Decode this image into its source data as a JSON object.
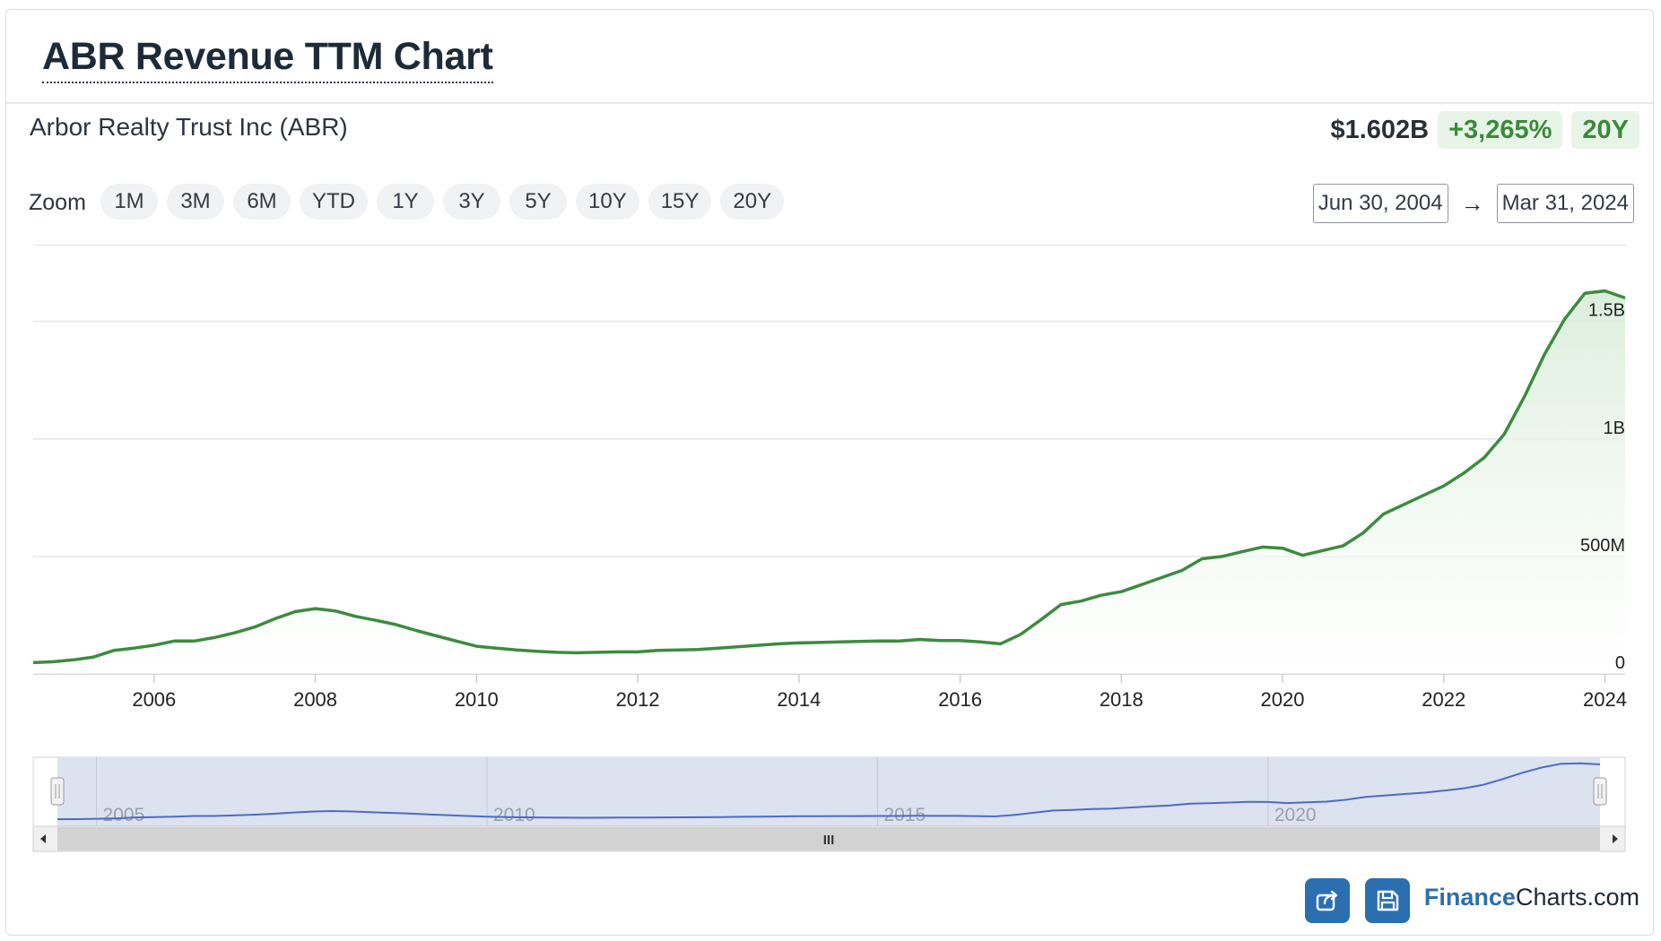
{
  "header": {
    "title": "ABR Revenue TTM Chart"
  },
  "company": {
    "name": "Arbor Realty Trust Inc (ABR)"
  },
  "summary": {
    "price": "$1.602B",
    "change": "+3,265%",
    "period": "20Y"
  },
  "zoom": {
    "label": "Zoom",
    "buttons": [
      "1M",
      "3M",
      "6M",
      "YTD",
      "1Y",
      "3Y",
      "5Y",
      "10Y",
      "15Y",
      "20Y"
    ]
  },
  "date_range": {
    "from": "Jun 30, 2004",
    "to": "Mar 31, 2024",
    "arrow": "→"
  },
  "colors": {
    "line": "#3d8b40",
    "fill": "#e9f4e9",
    "navigator_bg": "#dde2f0",
    "navigator_line": "#4b6cc2",
    "brand": "#2c6fb0"
  },
  "chart_data": {
    "type": "area",
    "title": "ABR Revenue TTM Chart",
    "series": [
      {
        "x": [
          2004.5,
          2004.75,
          2005.0,
          2005.25,
          2005.5,
          2005.75,
          2006.0,
          2006.25,
          2006.5,
          2006.75,
          2007.0,
          2007.25,
          2007.5,
          2007.75,
          2008.0,
          2008.25,
          2008.5,
          2008.75,
          2009.0,
          2009.25,
          2009.5,
          2009.75,
          2010.0,
          2010.25,
          2010.5,
          2010.75,
          2011.0,
          2011.25,
          2011.5,
          2011.75,
          2012.0,
          2012.25,
          2012.5,
          2012.75,
          2013.0,
          2013.25,
          2013.5,
          2013.75,
          2014.0,
          2014.25,
          2014.5,
          2014.75,
          2015.0,
          2015.25,
          2015.5,
          2015.75,
          2016.0,
          2016.25,
          2016.5,
          2016.75,
          2017.0,
          2017.25,
          2017.5,
          2017.75,
          2018.0,
          2018.25,
          2018.5,
          2018.75,
          2019.0,
          2019.25,
          2019.5,
          2019.75,
          2020.0,
          2020.25,
          2020.5,
          2020.75,
          2021.0,
          2021.25,
          2021.5,
          2021.75,
          2022.0,
          2022.25,
          2022.5,
          2022.75,
          2023.0,
          2023.25,
          2023.5,
          2023.75,
          2024.0,
          2024.25
        ],
        "values": [
          48,
          52,
          60,
          72,
          100,
          110,
          122,
          140,
          140,
          155,
          175,
          200,
          235,
          265,
          278,
          268,
          245,
          228,
          210,
          185,
          162,
          140,
          118,
          110,
          102,
          96,
          92,
          90,
          92,
          94,
          94,
          100,
          102,
          104,
          110,
          116,
          122,
          128,
          132,
          134,
          136,
          138,
          140,
          140,
          147,
          142,
          142,
          136,
          128,
          168,
          230,
          295,
          310,
          335,
          350,
          380,
          410,
          440,
          490,
          500,
          520,
          540,
          535,
          505,
          525,
          545,
          600,
          680,
          720,
          760,
          800,
          855,
          920,
          1020,
          1180,
          1360,
          1510,
          1620,
          1630,
          1600
        ]
      }
    ],
    "x_ticks": [
      "2006",
      "2008",
      "2010",
      "2012",
      "2014",
      "2016",
      "2018",
      "2020",
      "2022",
      "2024"
    ],
    "y_ticks": [
      "0",
      "500M",
      "1B",
      "1.5B"
    ],
    "ylim": [
      0,
      1800
    ],
    "xlim": [
      2004.5,
      2024.25
    ],
    "grid": true,
    "navigator": {
      "labels": [
        "2005",
        "2010",
        "2015",
        "2020"
      ],
      "scroll_glyph": "III"
    }
  },
  "footer": {
    "brand_part1": "Finance",
    "brand_part2": "Charts.com"
  }
}
